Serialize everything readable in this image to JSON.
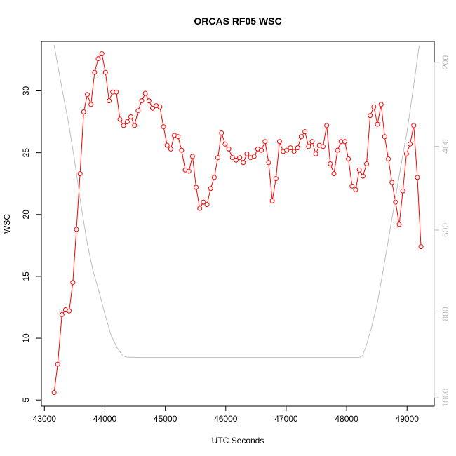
{
  "chart_data": {
    "type": "line",
    "title": "ORCAS RF05 WSC",
    "xlabel": "UTC Seconds",
    "ylabel": "WSC",
    "xlim": [
      42950,
      49450
    ],
    "ylim": [
      4.5,
      34.0
    ],
    "y2lim": [
      1020,
      150
    ],
    "x_ticks": [
      43000,
      44000,
      45000,
      46000,
      47000,
      48000,
      49000
    ],
    "x_tick_labels": [
      "43000",
      "44000",
      "45000",
      "46000",
      "47000",
      "48000",
      "49000"
    ],
    "y_ticks": [
      5,
      10,
      15,
      20,
      25,
      30
    ],
    "y_tick_labels": [
      "5",
      "10",
      "15",
      "20",
      "25",
      "30"
    ],
    "y2_ticks": [
      200,
      400,
      600,
      800,
      1000
    ],
    "y2_tick_labels": [
      "200",
      "400",
      "600",
      "800",
      "1000"
    ],
    "grid": false,
    "colors": {
      "series": "#ff0000",
      "secondary": "#bebebe",
      "right_axis": "#bdbdbd"
    },
    "series": [
      {
        "color": "#ff0000",
        "axis": "left",
        "style": "line+open-circles",
        "x": [
          43160,
          43220,
          43290,
          43350,
          43410,
          43470,
          43530,
          43590,
          43650,
          43710,
          43770,
          43830,
          43890,
          43950,
          44010,
          44070,
          44130,
          44190,
          44250,
          44310,
          44370,
          44430,
          44490,
          44550,
          44610,
          44670,
          44730,
          44790,
          44850,
          44910,
          44970,
          45030,
          45090,
          45150,
          45210,
          45270,
          45330,
          45390,
          45450,
          45510,
          45570,
          45630,
          45690,
          45750,
          45810,
          45870,
          45930,
          45990,
          46050,
          46110,
          46170,
          46230,
          46290,
          46350,
          46410,
          46470,
          46530,
          46590,
          46650,
          46710,
          46770,
          46830,
          46890,
          46950,
          47010,
          47070,
          47130,
          47190,
          47250,
          47310,
          47370,
          47430,
          47490,
          47550,
          47610,
          47670,
          47730,
          47790,
          47850,
          47910,
          47970,
          48030,
          48090,
          48150,
          48210,
          48270,
          48330,
          48390,
          48450,
          48510,
          48570,
          48630,
          48690,
          48750,
          48810,
          48870,
          48930,
          48990,
          49050,
          49110,
          49170,
          49230
        ],
        "y": [
          5.6,
          7.9,
          11.9,
          12.3,
          12.2,
          14.5,
          18.8,
          23.3,
          28.3,
          29.7,
          28.9,
          31.5,
          32.6,
          33.0,
          31.5,
          29.2,
          29.9,
          29.9,
          27.7,
          27.2,
          27.5,
          27.9,
          27.2,
          28.4,
          29.2,
          29.8,
          29.2,
          28.6,
          28.8,
          28.7,
          27.1,
          25.6,
          25.3,
          26.4,
          26.3,
          25.2,
          23.6,
          23.5,
          24.7,
          22.2,
          20.5,
          21.0,
          20.8,
          22.1,
          23.0,
          24.6,
          26.6,
          25.7,
          25.3,
          24.6,
          24.4,
          24.6,
          24.2,
          24.9,
          24.6,
          24.7,
          25.3,
          25.2,
          25.9,
          24.2,
          21.1,
          22.9,
          25.9,
          25.1,
          25.2,
          25.4,
          25.1,
          25.4,
          26.3,
          26.7,
          25.5,
          25.9,
          24.9,
          25.6,
          25.5,
          27.2,
          24.1,
          23.3,
          25.2,
          25.9,
          25.9,
          24.5,
          22.3,
          22.0,
          23.6,
          23.1,
          24.1,
          28.0,
          28.7,
          27.3,
          28.9,
          26.3,
          24.5,
          22.6,
          21.0,
          19.2,
          21.9,
          24.9,
          25.7,
          27.2,
          23.0,
          17.4
        ]
      },
      {
        "color": "#bebebe",
        "axis": "right",
        "style": "line",
        "x": [
          43160,
          43300,
          43400,
          43500,
          43600,
          43700,
          43800,
          43900,
          44000,
          44100,
          44200,
          44300,
          44360,
          44600,
          45000,
          45500,
          46000,
          46500,
          47000,
          47500,
          48000,
          48200,
          48260,
          48320,
          48400,
          48500,
          48600,
          48700,
          48800,
          48900,
          49000,
          49100,
          49200
        ],
        "y": [
          158,
          270,
          345,
          435,
          535,
          625,
          695,
          745,
          800,
          850,
          880,
          900,
          903,
          904,
          904,
          904,
          904,
          904,
          904,
          904,
          904,
          904,
          900,
          878,
          838,
          780,
          700,
          615,
          530,
          445,
          365,
          265,
          160
        ]
      }
    ]
  }
}
